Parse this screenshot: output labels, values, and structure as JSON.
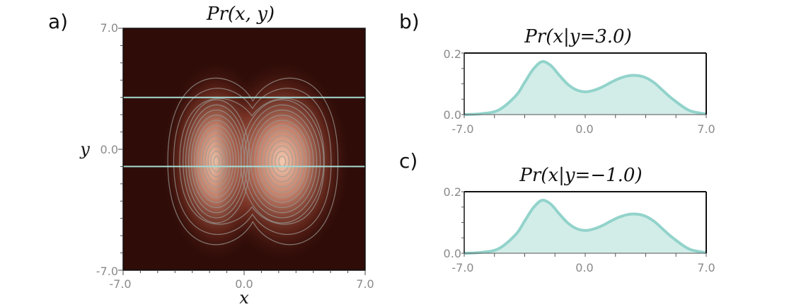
{
  "chart_data": [
    {
      "type": "heatmap",
      "panel": "a)",
      "title": "Pr(x, y)",
      "xlabel": "x",
      "ylabel": "y",
      "xlim": [
        -7.0,
        7.0
      ],
      "ylim": [
        -7.0,
        7.0
      ],
      "x_ticks": [
        "-7.0",
        "0.0",
        "7.0"
      ],
      "y_ticks": [
        "7.0",
        "0.0",
        "-7.0"
      ],
      "mixture_components": [
        {
          "weight": 0.52,
          "mean": [
            -1.6,
            -0.7
          ],
          "std": [
            1.25,
            2.3
          ]
        },
        {
          "weight": 0.48,
          "mean": [
            2.2,
            -0.7
          ],
          "std": [
            1.55,
            2.3
          ]
        }
      ],
      "slice_lines_y": [
        3.0,
        -1.0
      ],
      "colors": {
        "background": "#2f0c08",
        "peak": "#ffd4b8",
        "contour": "#9a9a94",
        "slice_line": "#a6dcd4"
      }
    },
    {
      "type": "area",
      "panel": "b)",
      "title": "Pr(x|y=3.0)",
      "xlim": [
        -7.0,
        7.0
      ],
      "ylim": [
        0.0,
        0.2
      ],
      "x_ticks": [
        "-7.0",
        "0.0",
        "7.0"
      ],
      "y_ticks": [
        "0.2",
        "0.0"
      ],
      "x": [
        -7,
        -6,
        -5,
        -4,
        -3.5,
        -3,
        -2.5,
        -2,
        -1.5,
        -1,
        -0.5,
        0,
        0.5,
        1,
        1.5,
        2,
        2.5,
        3,
        3.5,
        4,
        4.5,
        5,
        6,
        7
      ],
      "y": [
        0.0,
        0.003,
        0.015,
        0.062,
        0.105,
        0.148,
        0.172,
        0.16,
        0.128,
        0.098,
        0.08,
        0.074,
        0.079,
        0.09,
        0.105,
        0.118,
        0.126,
        0.127,
        0.12,
        0.103,
        0.078,
        0.053,
        0.014,
        0.002
      ],
      "colors": {
        "fill": "#d2ede8",
        "line": "#92d3cb"
      }
    },
    {
      "type": "area",
      "panel": "c)",
      "title": "Pr(x|y=−1.0)",
      "xlim": [
        -7.0,
        7.0
      ],
      "ylim": [
        0.0,
        0.2
      ],
      "x_ticks": [
        "-7.0",
        "0.0",
        "7.0"
      ],
      "y_ticks": [
        "0.2",
        "0.0"
      ],
      "x": [
        -7,
        -6,
        -5,
        -4,
        -3.5,
        -3,
        -2.5,
        -2,
        -1.5,
        -1,
        -0.5,
        0,
        0.5,
        1,
        1.5,
        2,
        2.5,
        3,
        3.5,
        4,
        4.5,
        5,
        6,
        7
      ],
      "y": [
        0.0,
        0.003,
        0.015,
        0.062,
        0.105,
        0.148,
        0.172,
        0.16,
        0.128,
        0.098,
        0.08,
        0.074,
        0.079,
        0.09,
        0.105,
        0.118,
        0.126,
        0.127,
        0.12,
        0.103,
        0.078,
        0.053,
        0.014,
        0.002
      ],
      "colors": {
        "fill": "#d2ede8",
        "line": "#92d3cb"
      }
    }
  ]
}
